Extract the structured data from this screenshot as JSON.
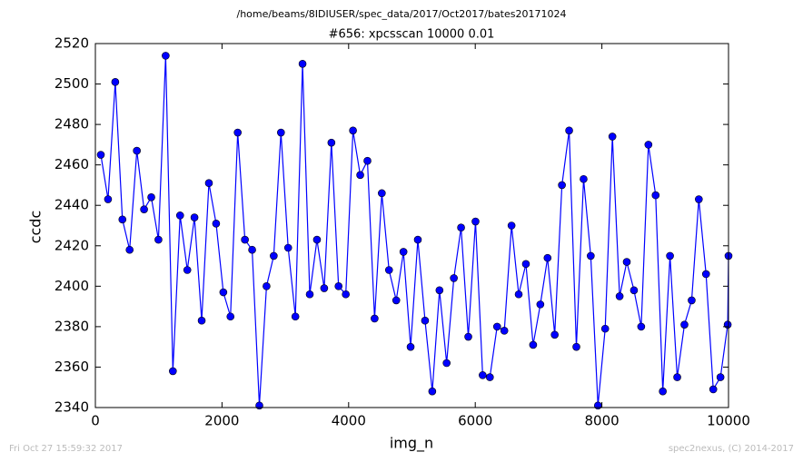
{
  "chart_data": {
    "type": "line",
    "header": "/home/beams/8IDIUSER/spec_data/2017/Oct2017/bates20171024",
    "title": "#656: xpcsscan 10000 0.01",
    "xlabel": "img_n",
    "ylabel": "ccdc",
    "footer_left": "Fri Oct 27 15:59:32 2017",
    "footer_right": "spec2nexus, (C) 2014-2017",
    "xlim": [
      0,
      10000
    ],
    "ylim": [
      2340,
      2520
    ],
    "xticks": [
      0,
      2000,
      4000,
      6000,
      8000,
      10000
    ],
    "yticks": [
      2340,
      2360,
      2380,
      2400,
      2420,
      2440,
      2460,
      2480,
      2500,
      2520
    ],
    "x": [
      86,
      200,
      314,
      427,
      541,
      655,
      769,
      883,
      996,
      1110,
      1224,
      1338,
      1452,
      1565,
      1679,
      1793,
      1907,
      2021,
      2134,
      2248,
      2362,
      2476,
      2590,
      2703,
      2817,
      2931,
      3045,
      3159,
      3272,
      3386,
      3500,
      3614,
      3728,
      3841,
      3955,
      4069,
      4183,
      4297,
      4410,
      4524,
      4638,
      4752,
      4866,
      4979,
      5093,
      5207,
      5321,
      5435,
      5548,
      5662,
      5776,
      5890,
      6004,
      6117,
      6231,
      6345,
      6459,
      6573,
      6686,
      6800,
      6914,
      7028,
      7142,
      7255,
      7369,
      7483,
      7597,
      7711,
      7824,
      7938,
      8052,
      8166,
      8280,
      8393,
      8507,
      8621,
      8735,
      8849,
      8962,
      9076,
      9190,
      9304,
      9418,
      9531,
      9645,
      9759,
      9873,
      9987,
      10000
    ],
    "series": [
      {
        "color": "#0000ff",
        "values": [
          2465,
          2443,
          2501,
          2433,
          2418,
          2467,
          2438,
          2444,
          2423,
          2514,
          2358,
          2435,
          2408,
          2434,
          2383,
          2451,
          2431,
          2397,
          2385,
          2476,
          2423,
          2418,
          2341,
          2400,
          2415,
          2476,
          2419,
          2385,
          2510,
          2396,
          2423,
          2399,
          2471,
          2400,
          2396,
          2477,
          2455,
          2462,
          2384,
          2446,
          2408,
          2393,
          2417,
          2370,
          2423,
          2383,
          2348,
          2398,
          2362,
          2404,
          2429,
          2375,
          2432,
          2356,
          2355,
          2380,
          2378,
          2430,
          2396,
          2411,
          2371,
          2391,
          2414,
          2376,
          2450,
          2477,
          2370,
          2453,
          2415,
          2341,
          2379,
          2474,
          2395,
          2412,
          2398,
          2380,
          2470,
          2445,
          2348,
          2415,
          2355,
          2381,
          2393,
          2443,
          2406,
          2349,
          2355,
          2381,
          2415
        ]
      }
    ]
  }
}
